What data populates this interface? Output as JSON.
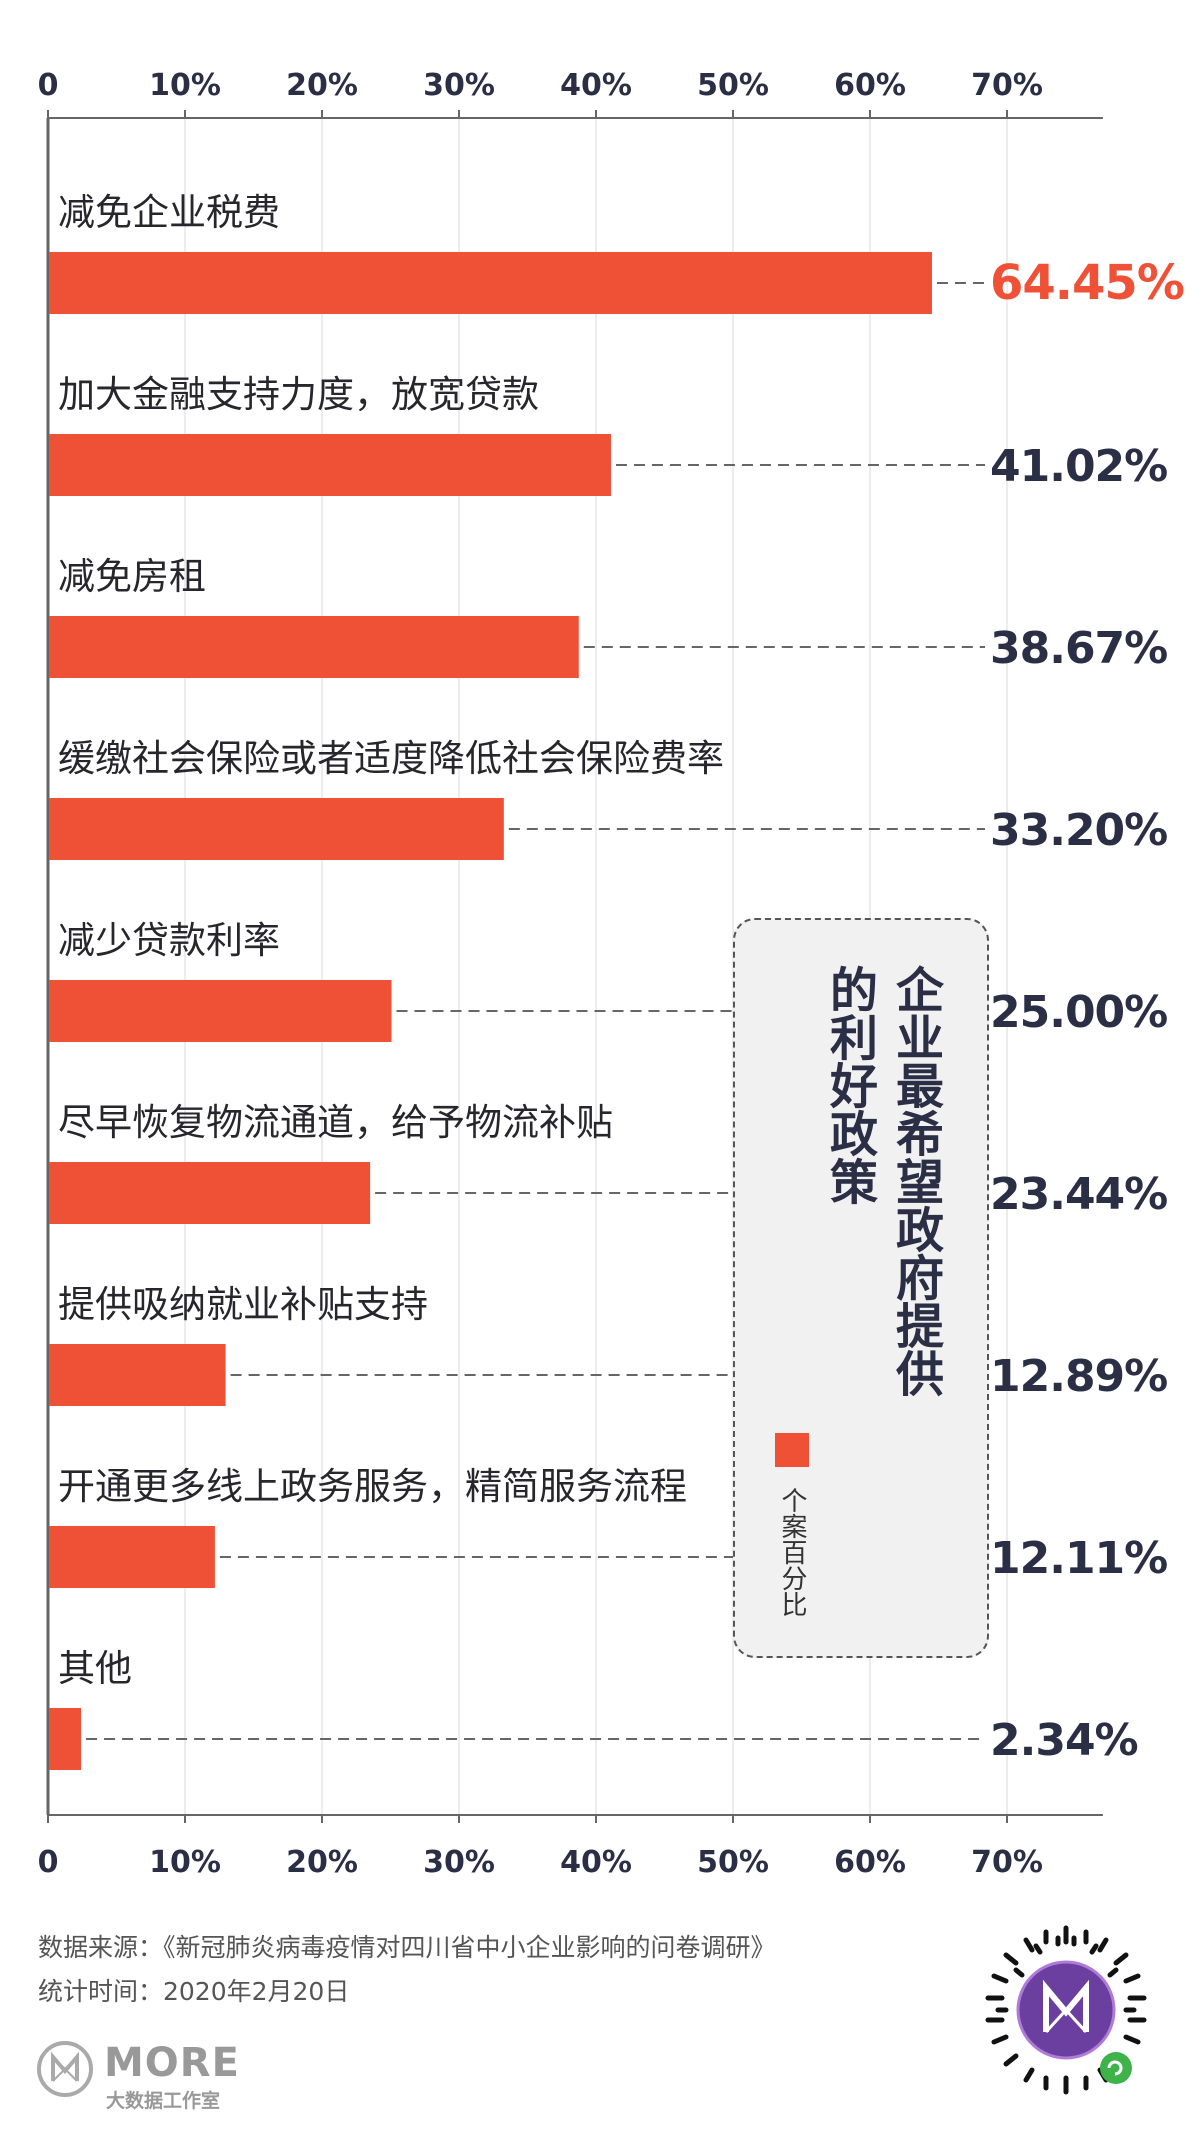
{
  "chart_data": {
    "type": "bar",
    "orientation": "horizontal",
    "categories": [
      "减免企业税费",
      "加大金融支持力度，放宽贷款",
      "减免房租",
      "缓缴社会保险或者适度降低社会保险费率",
      "减少贷款利率",
      "尽早恢复物流通道，给予物流补贴",
      "提供吸纳就业补贴支持",
      "开通更多线上政务服务，精简服务流程",
      "其他"
    ],
    "values": [
      64.45,
      41.02,
      38.67,
      33.2,
      25.0,
      23.44,
      12.89,
      12.11,
      2.34
    ],
    "value_labels": [
      "64.45%",
      "41.02%",
      "38.67%",
      "33.20%",
      "25.00%",
      "23.44%",
      "12.89%",
      "12.11%",
      "2.34%"
    ],
    "x_ticks": [
      "0",
      "10%",
      "20%",
      "30%",
      "40%",
      "50%",
      "60%",
      "70%"
    ],
    "xlim": [
      0,
      77
    ],
    "title": "企业最希望政府提供的利好政策",
    "title_lines": [
      "企业最希望政府提供",
      "的利好政策"
    ],
    "legend": "个案百分比",
    "legend_placement": "center-right",
    "bar_color": "#ef5136",
    "highlight_color": "#ef5136",
    "text_color": "#2b2f45",
    "grid": true
  },
  "footer": {
    "source": "数据来源：《新冠肺炎病毒疫情对四川省中小企业影响的问卷调研》",
    "date": "统计时间：2020年2月20日"
  },
  "logo": {
    "name": "MORE",
    "subtitle": "大数据工作室"
  },
  "qr_icon": "mini-program-qr-icon"
}
